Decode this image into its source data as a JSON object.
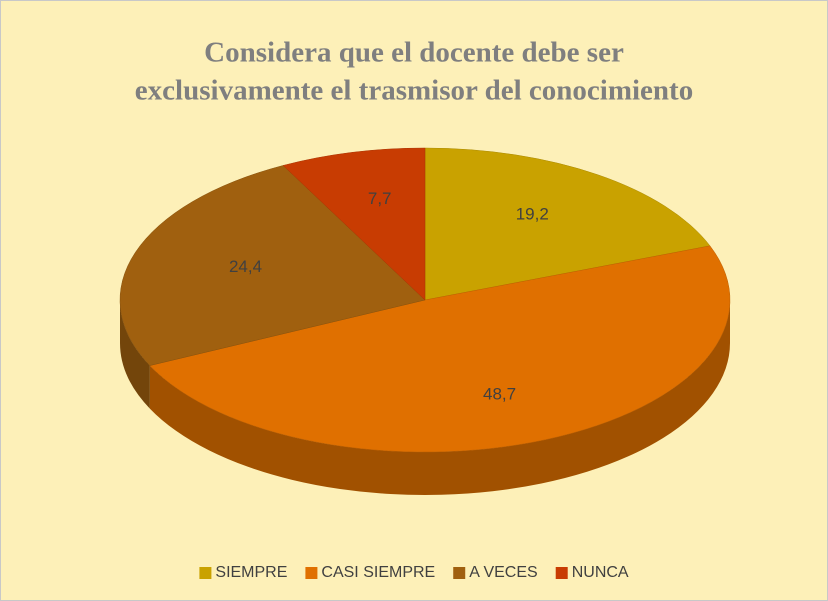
{
  "chart_data": {
    "type": "pie",
    "title": [
      "Considera que el docente debe ser",
      "exclusivamente el trasmisor del conocimiento"
    ],
    "categories": [
      "SIEMPRE",
      "CASI SIEMPRE",
      "A VECES",
      "NUNCA"
    ],
    "values": [
      19.2,
      48.7,
      24.4,
      7.7
    ],
    "value_labels": [
      "19,2",
      "48,7",
      "24,4",
      "7,7"
    ],
    "colors": [
      "#c9a200",
      "#e07000",
      "#a0600f",
      "#c83c02"
    ],
    "legend": "bottom"
  }
}
